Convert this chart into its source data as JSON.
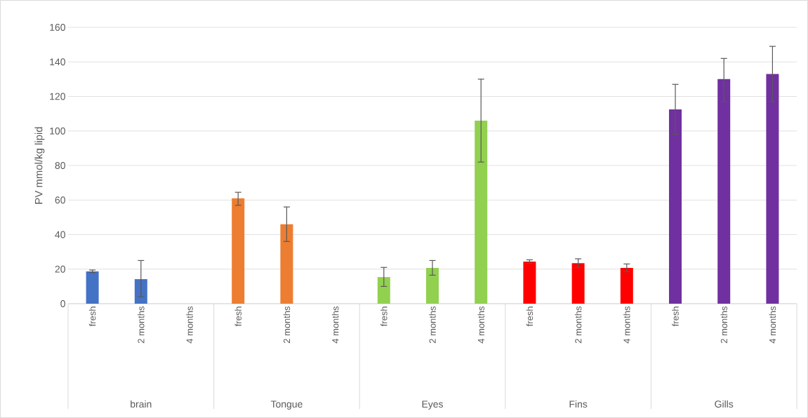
{
  "chart_data": {
    "type": "bar",
    "ylabel": "PV mmol/kg lipid",
    "categories": [
      "fresh",
      "2 months",
      "4 months",
      "fresh",
      "2 months",
      "4 months",
      "fresh",
      "2 months",
      "4 months",
      "fresh",
      "2 months",
      "4 months",
      "fresh",
      "2 months",
      "4 months"
    ],
    "values": [
      18.7,
      14.2,
      null,
      61,
      46,
      null,
      15.4,
      20.7,
      106,
      24.4,
      23.5,
      20.7,
      112.5,
      130,
      133
    ],
    "errors": [
      [
        18,
        19.5
      ],
      [
        4,
        25
      ],
      null,
      [
        57,
        64.5
      ],
      [
        36,
        56
      ],
      null,
      [
        10,
        21
      ],
      [
        16.5,
        25
      ],
      [
        82,
        130
      ],
      [
        23.4,
        25.4
      ],
      [
        21,
        26
      ],
      [
        18.5,
        23
      ],
      [
        98,
        127
      ],
      [
        117,
        142
      ],
      [
        117,
        149
      ]
    ],
    "colors": [
      "#4472c4",
      "#4472c4",
      "#4472c4",
      "#ed7d31",
      "#ed7d31",
      "#ed7d31",
      "#92d050",
      "#92d050",
      "#92d050",
      "#ff0000",
      "#ff0000",
      "#ff0000",
      "#7030a0",
      "#7030a0",
      "#7030a0"
    ],
    "annotations": [
      "brain",
      "Tongue",
      "Eyes",
      "Fins",
      "Gills"
    ],
    "ylim": [
      0,
      160
    ],
    "yticks": [
      0,
      20,
      40,
      60,
      80,
      100,
      120,
      140,
      160
    ],
    "grid": "y"
  }
}
